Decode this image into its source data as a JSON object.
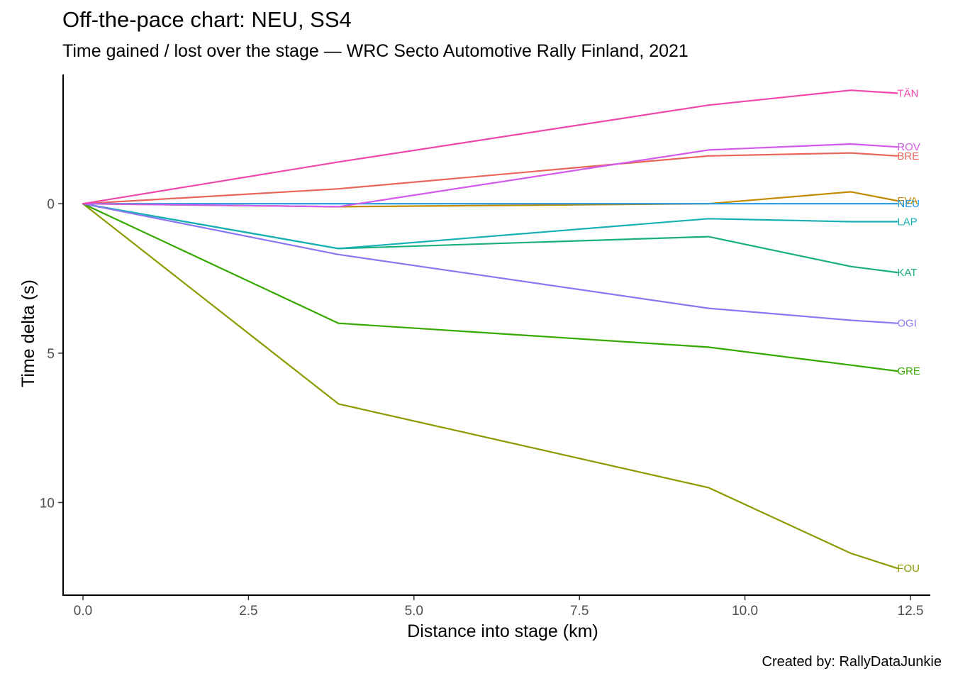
{
  "chart_data": {
    "type": "line",
    "title": "Off-the-pace chart: NEU, SS4",
    "subtitle": "Time gained / lost over the stage — WRC Secto Automotive Rally Finland, 2021",
    "caption": "Created by: RallyDataJunkie",
    "xlabel": "Distance into stage (km)",
    "ylabel": "Time delta (s)",
    "xlim": [
      -0.3,
      12.8
    ],
    "ylim": [
      -4.35,
      13.1
    ],
    "y_reversed": true,
    "grid": false,
    "legend": "none",
    "x_ticks": [
      {
        "value": 0,
        "label": "0.0"
      },
      {
        "value": 2.5,
        "label": "2.5"
      },
      {
        "value": 5,
        "label": "5.0"
      },
      {
        "value": 7.5,
        "label": "7.5"
      },
      {
        "value": 10,
        "label": "10.0"
      },
      {
        "value": 12.5,
        "label": "12.5"
      }
    ],
    "y_ticks": [
      {
        "value": 0,
        "label": "0"
      },
      {
        "value": 5,
        "label": "5"
      },
      {
        "value": 10,
        "label": "10"
      }
    ],
    "series": [
      {
        "name": "BRE",
        "color": "#E9655A",
        "x": [
          0,
          3.86,
          9.45,
          11.6,
          12.3
        ],
        "y": [
          0,
          -0.5,
          -1.6,
          -1.7,
          -1.6
        ]
      },
      {
        "name": "EVA",
        "color": "#C38A00",
        "x": [
          0,
          3.86,
          9.45,
          11.6,
          12.3
        ],
        "y": [
          0,
          0.1,
          0.0,
          -0.4,
          -0.1
        ]
      },
      {
        "name": "FOU",
        "color": "#8C9A00",
        "x": [
          0,
          3.86,
          9.45,
          11.6,
          12.3
        ],
        "y": [
          0,
          6.7,
          9.5,
          11.7,
          12.2
        ]
      },
      {
        "name": "GRE",
        "color": "#35A800",
        "x": [
          0,
          3.86,
          9.45,
          11.6,
          12.3
        ],
        "y": [
          0,
          4.0,
          4.8,
          5.4,
          5.6
        ]
      },
      {
        "name": "KAT",
        "color": "#1AB07D",
        "x": [
          0,
          3.86,
          9.45,
          11.6,
          12.3
        ],
        "y": [
          0,
          1.5,
          1.1,
          2.1,
          2.3
        ]
      },
      {
        "name": "LAP",
        "color": "#16B0B5",
        "x": [
          0,
          3.86,
          9.45,
          11.6,
          12.3
        ],
        "y": [
          0,
          1.5,
          0.5,
          0.6,
          0.6
        ]
      },
      {
        "name": "NEU",
        "color": "#1E9BE8",
        "x": [
          0,
          3.86,
          9.45,
          11.6,
          12.3
        ],
        "y": [
          0,
          0,
          0,
          0,
          0
        ]
      },
      {
        "name": "OGI",
        "color": "#8A77F2",
        "x": [
          0,
          3.86,
          9.45,
          11.6,
          12.3
        ],
        "y": [
          0,
          1.7,
          3.5,
          3.9,
          4.0
        ]
      },
      {
        "name": "ROV",
        "color": "#D359EA",
        "x": [
          0,
          3.86,
          9.45,
          11.6,
          12.3
        ],
        "y": [
          0,
          0.1,
          -1.8,
          -2.0,
          -1.9
        ]
      },
      {
        "name": "TÄN",
        "color": "#F146AE",
        "x": [
          0,
          3.86,
          9.45,
          11.6,
          12.3
        ],
        "y": [
          0,
          -1.4,
          -3.3,
          -3.8,
          -3.7
        ]
      }
    ]
  }
}
